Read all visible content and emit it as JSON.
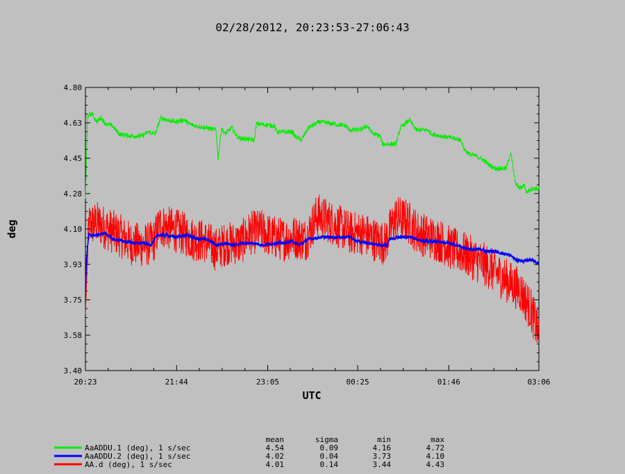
{
  "chart_data": {
    "type": "line",
    "title": "02/28/2012, 20:23:53-27:06:43",
    "xlabel": "UTC",
    "ylabel": "deg",
    "ylim": [
      3.4,
      4.8
    ],
    "yticks": [
      "4.80",
      "4.63",
      "4.45",
      "4.28",
      "4.10",
      "3.93",
      "3.75",
      "3.58",
      "3.40"
    ],
    "xlim_minutes": [
      0,
      403
    ],
    "xticks": [
      {
        "label": "20:23",
        "t": 0
      },
      {
        "label": "21:44",
        "t": 81
      },
      {
        "label": "23:05",
        "t": 162
      },
      {
        "label": "00:25",
        "t": 242
      },
      {
        "label": "01:46",
        "t": 323
      },
      {
        "label": "03:06",
        "t": 403
      }
    ],
    "grid": false,
    "stats_headers": [
      "mean",
      "sigma",
      "min",
      "max"
    ],
    "series": [
      {
        "name": "AaADDU.1 (deg), 1 s/sec",
        "color": "#00ee00",
        "stats": [
          "4.54",
          "0.09",
          "4.16",
          "4.72"
        ],
        "noise": 0.012,
        "points": [
          [
            0,
            4.25
          ],
          [
            2,
            4.66
          ],
          [
            6,
            4.67
          ],
          [
            10,
            4.63
          ],
          [
            14,
            4.65
          ],
          [
            18,
            4.62
          ],
          [
            24,
            4.61
          ],
          [
            30,
            4.57
          ],
          [
            40,
            4.56
          ],
          [
            50,
            4.56
          ],
          [
            56,
            4.58
          ],
          [
            62,
            4.57
          ],
          [
            67,
            4.65
          ],
          [
            72,
            4.64
          ],
          [
            80,
            4.63
          ],
          [
            88,
            4.64
          ],
          [
            92,
            4.62
          ],
          [
            98,
            4.61
          ],
          [
            108,
            4.6
          ],
          [
            116,
            4.59
          ],
          [
            118,
            4.45
          ],
          [
            121,
            4.6
          ],
          [
            124,
            4.57
          ],
          [
            130,
            4.6
          ],
          [
            136,
            4.55
          ],
          [
            150,
            4.54
          ],
          [
            152,
            4.62
          ],
          [
            168,
            4.61
          ],
          [
            170,
            4.58
          ],
          [
            184,
            4.58
          ],
          [
            186,
            4.56
          ],
          [
            192,
            4.54
          ],
          [
            198,
            4.6
          ],
          [
            208,
            4.63
          ],
          [
            220,
            4.62
          ],
          [
            232,
            4.61
          ],
          [
            234,
            4.59
          ],
          [
            244,
            4.59
          ],
          [
            250,
            4.61
          ],
          [
            256,
            4.57
          ],
          [
            262,
            4.56
          ],
          [
            264,
            4.52
          ],
          [
            276,
            4.52
          ],
          [
            280,
            4.6
          ],
          [
            288,
            4.64
          ],
          [
            294,
            4.59
          ],
          [
            304,
            4.59
          ],
          [
            308,
            4.57
          ],
          [
            316,
            4.56
          ],
          [
            326,
            4.55
          ],
          [
            334,
            4.54
          ],
          [
            336,
            4.5
          ],
          [
            341,
            4.47
          ],
          [
            348,
            4.46
          ],
          [
            354,
            4.44
          ],
          [
            358,
            4.42
          ],
          [
            364,
            4.4
          ],
          [
            374,
            4.4
          ],
          [
            378,
            4.48
          ],
          [
            382,
            4.33
          ],
          [
            386,
            4.3
          ],
          [
            390,
            4.32
          ],
          [
            392,
            4.28
          ],
          [
            396,
            4.3
          ],
          [
            403,
            4.3
          ]
        ]
      },
      {
        "name": "AaADDU.2 (deg), 1 s/sec",
        "color": "#0000ff",
        "stats": [
          "4.02",
          "0.04",
          "3.73",
          "4.10"
        ],
        "noise": 0.008,
        "points": [
          [
            0,
            3.8
          ],
          [
            1,
            3.96
          ],
          [
            3,
            4.07
          ],
          [
            10,
            4.07
          ],
          [
            18,
            4.08
          ],
          [
            24,
            4.05
          ],
          [
            34,
            4.04
          ],
          [
            44,
            4.03
          ],
          [
            52,
            4.03
          ],
          [
            58,
            4.02
          ],
          [
            64,
            4.07
          ],
          [
            72,
            4.07
          ],
          [
            80,
            4.06
          ],
          [
            90,
            4.07
          ],
          [
            100,
            4.05
          ],
          [
            108,
            4.05
          ],
          [
            116,
            4.02
          ],
          [
            124,
            4.03
          ],
          [
            132,
            4.02
          ],
          [
            140,
            4.03
          ],
          [
            150,
            4.03
          ],
          [
            158,
            4.02
          ],
          [
            168,
            4.03
          ],
          [
            176,
            4.03
          ],
          [
            184,
            4.04
          ],
          [
            190,
            4.02
          ],
          [
            198,
            4.05
          ],
          [
            210,
            4.06
          ],
          [
            220,
            4.06
          ],
          [
            230,
            4.06
          ],
          [
            236,
            4.06
          ],
          [
            240,
            4.04
          ],
          [
            252,
            4.03
          ],
          [
            262,
            4.02
          ],
          [
            268,
            4.02
          ],
          [
            270,
            4.05
          ],
          [
            278,
            4.06
          ],
          [
            290,
            4.06
          ],
          [
            300,
            4.04
          ],
          [
            312,
            4.04
          ],
          [
            322,
            4.03
          ],
          [
            330,
            4.02
          ],
          [
            340,
            4.0
          ],
          [
            350,
            4.0
          ],
          [
            358,
            3.99
          ],
          [
            364,
            3.99
          ],
          [
            370,
            3.98
          ],
          [
            378,
            3.97
          ],
          [
            382,
            3.95
          ],
          [
            390,
            3.94
          ],
          [
            396,
            3.95
          ],
          [
            403,
            3.93
          ]
        ]
      },
      {
        "name": "AA.d (deg), 1 s/sec",
        "color": "#ff0000",
        "stats": [
          "4.01",
          "0.14",
          "3.44",
          "4.43"
        ],
        "noise": 0.11,
        "points": [
          [
            0,
            3.68
          ],
          [
            3,
            4.12
          ],
          [
            10,
            4.13
          ],
          [
            20,
            4.1
          ],
          [
            30,
            4.07
          ],
          [
            40,
            4.03
          ],
          [
            50,
            4.02
          ],
          [
            60,
            4.03
          ],
          [
            66,
            4.12
          ],
          [
            76,
            4.1
          ],
          [
            86,
            4.08
          ],
          [
            96,
            4.05
          ],
          [
            106,
            4.04
          ],
          [
            116,
            4.0
          ],
          [
            126,
            4.03
          ],
          [
            138,
            4.03
          ],
          [
            146,
            4.08
          ],
          [
            156,
            4.09
          ],
          [
            166,
            4.06
          ],
          [
            176,
            4.05
          ],
          [
            186,
            4.06
          ],
          [
            196,
            4.05
          ],
          [
            206,
            4.17
          ],
          [
            216,
            4.14
          ],
          [
            226,
            4.11
          ],
          [
            236,
            4.08
          ],
          [
            246,
            4.08
          ],
          [
            256,
            4.05
          ],
          [
            266,
            4.03
          ],
          [
            276,
            4.16
          ],
          [
            286,
            4.14
          ],
          [
            296,
            4.08
          ],
          [
            306,
            4.06
          ],
          [
            316,
            4.04
          ],
          [
            326,
            4.0
          ],
          [
            336,
            3.98
          ],
          [
            346,
            3.95
          ],
          [
            356,
            3.92
          ],
          [
            366,
            3.88
          ],
          [
            376,
            3.84
          ],
          [
            386,
            3.8
          ],
          [
            396,
            3.7
          ],
          [
            403,
            3.58
          ]
        ]
      }
    ]
  }
}
